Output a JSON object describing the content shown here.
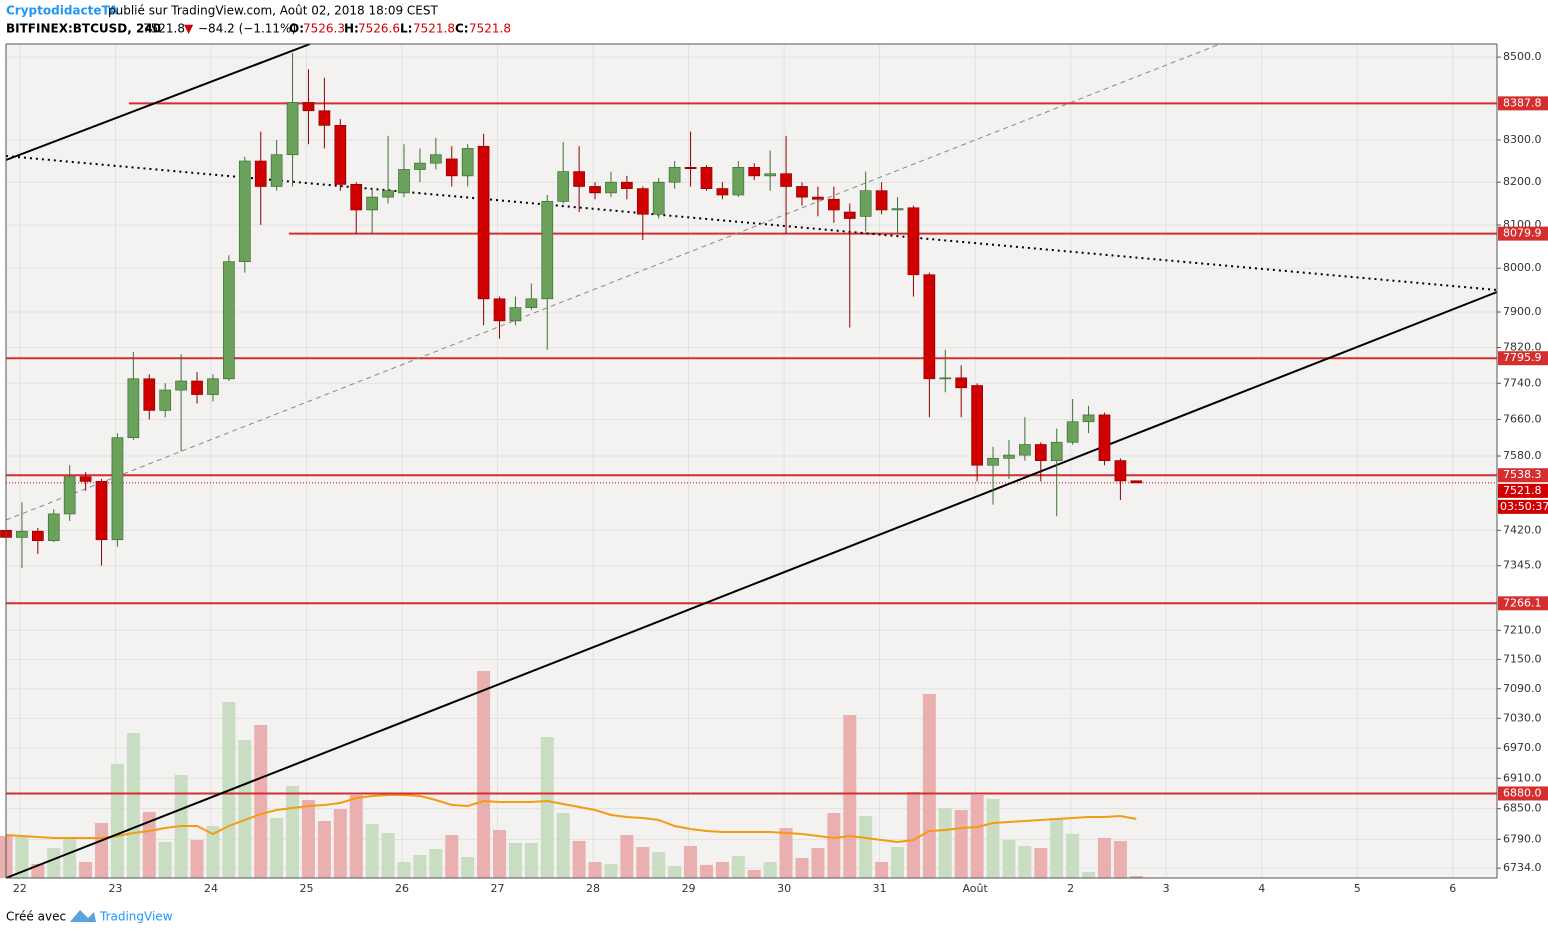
{
  "header": {
    "author": "CryptodidacteTA",
    "published": "publié sur TradingView.com, Août 02, 2018 18:09 CEST",
    "symbol": "BITFINEX:BTCUSD, 240",
    "last": "7521.8",
    "arrow": "▼",
    "change": "−84.2 (−1.11%)",
    "o_label": "O:",
    "o": "7526.3",
    "h_label": "H:",
    "h": "7526.6",
    "l_label": "L:",
    "l": "7521.8",
    "c_label": "C:",
    "c": "7521.8"
  },
  "footer": {
    "made_with": "Créé avec",
    "brand": "TradingView"
  },
  "chart_data": {
    "type": "candlestick",
    "log_scale": true,
    "grid": true,
    "ylim": [
      6715,
      8532
    ],
    "yticks": [
      {
        "value": 8500,
        "label": "8500.0"
      },
      {
        "value": 8300,
        "label": "8300.0"
      },
      {
        "value": 8200,
        "label": "8200.0"
      },
      {
        "value": 8100,
        "label": "8100.0"
      },
      {
        "value": 8000,
        "label": "8000.0"
      },
      {
        "value": 7900,
        "label": "7900.0"
      },
      {
        "value": 7820,
        "label": "7820.0"
      },
      {
        "value": 7740,
        "label": "7740.0"
      },
      {
        "value": 7660,
        "label": "7660.0"
      },
      {
        "value": 7580,
        "label": "7580.0"
      },
      {
        "value": 7420,
        "label": "7420.0"
      },
      {
        "value": 7345,
        "label": "7345.0"
      },
      {
        "value": 7210,
        "label": "7210.0"
      },
      {
        "value": 7150,
        "label": "7150.0"
      },
      {
        "value": 7090,
        "label": "7090.0"
      },
      {
        "value": 7030,
        "label": "7030.0"
      },
      {
        "value": 6970,
        "label": "6970.0"
      },
      {
        "value": 6910,
        "label": "6910.0"
      },
      {
        "value": 6850,
        "label": "6850.0"
      },
      {
        "value": 6790,
        "label": "6790.0"
      },
      {
        "value": 6734,
        "label": "6734.0"
      }
    ],
    "x_labels": [
      "22",
      "23",
      "24",
      "25",
      "26",
      "27",
      "28",
      "29",
      "30",
      "31",
      "Août",
      "2",
      "3",
      "4",
      "5",
      "6"
    ],
    "up_color": "#6ba25b",
    "down_color": "#d10000",
    "open": [
      7420,
      7405,
      7418,
      7398,
      7455,
      7535,
      7525,
      7400,
      7620,
      7750,
      7680,
      7725,
      7745,
      7715,
      7750,
      8015,
      8250,
      8190,
      8265,
      8390,
      8370,
      8335,
      8195,
      8135,
      8165,
      8175,
      8230,
      8245,
      8255,
      8215,
      8285,
      7930,
      7880,
      7910,
      7930,
      8155,
      8225,
      8190,
      8175,
      8200,
      8185,
      8125,
      8200,
      8235,
      8235,
      8185,
      8170,
      8235,
      8215,
      8220,
      8190,
      8165,
      8160,
      8130,
      8120,
      8180,
      8135,
      8140,
      7985,
      7750,
      7752,
      7735,
      7560,
      7575,
      7582,
      7605,
      7570,
      7610,
      7655,
      7670,
      7570,
      7526.3
    ],
    "high": [
      7425,
      7480,
      7425,
      7465,
      7560,
      7545,
      7530,
      7630,
      7810,
      7760,
      7740,
      7805,
      7765,
      7760,
      8030,
      8260,
      8320,
      8300,
      8510,
      8470,
      8450,
      8350,
      8200,
      8185,
      8310,
      8290,
      8280,
      8305,
      8285,
      8290,
      8315,
      7935,
      7935,
      7965,
      8170,
      8295,
      8285,
      8200,
      8225,
      8215,
      8190,
      8210,
      8250,
      8320,
      8240,
      8200,
      8250,
      8245,
      8275,
      8310,
      8200,
      8190,
      8190,
      8150,
      8225,
      8200,
      8165,
      8145,
      7990,
      7815,
      7780,
      7740,
      7600,
      7615,
      7665,
      7610,
      7640,
      7705,
      7690,
      7675,
      7575,
      7526.6
    ],
    "low": [
      7400,
      7340,
      7370,
      7395,
      7440,
      7505,
      7345,
      7385,
      7615,
      7660,
      7665,
      7590,
      7695,
      7700,
      7745,
      7990,
      8100,
      8180,
      8190,
      8290,
      8280,
      8180,
      8080,
      8080,
      8150,
      8165,
      8200,
      8230,
      8190,
      8190,
      7870,
      7840,
      7870,
      7905,
      7815,
      8150,
      8130,
      8160,
      8165,
      8160,
      8065,
      8115,
      8185,
      8190,
      8180,
      8160,
      8165,
      8205,
      8180,
      8080,
      8145,
      8120,
      8105,
      7865,
      8085,
      8125,
      8080,
      7935,
      7665,
      7720,
      7665,
      7525,
      7475,
      7530,
      7570,
      7525,
      7450,
      7605,
      7630,
      7560,
      7485,
      7521.8
    ],
    "close": [
      7405,
      7418,
      7398,
      7455,
      7535,
      7525,
      7400,
      7620,
      7750,
      7680,
      7725,
      7745,
      7715,
      7750,
      8015,
      8250,
      8190,
      8265,
      8390,
      8370,
      8335,
      8195,
      8135,
      8165,
      8180,
      8230,
      8245,
      8265,
      8215,
      8280,
      7930,
      7880,
      7910,
      7930,
      8155,
      8225,
      8190,
      8175,
      8200,
      8185,
      8125,
      8200,
      8235,
      8232,
      8185,
      8170,
      8235,
      8215,
      8220,
      8190,
      8165,
      8160,
      8135,
      8115,
      8180,
      8135,
      8138,
      7985,
      7750,
      7752,
      7730,
      7560,
      7575,
      7582,
      7605,
      7570,
      7610,
      7655,
      7670,
      7570,
      7526,
      7521.8
    ],
    "volume": {
      "up_color": "#c9ddc3",
      "down_color": "#eab0b0",
      "values": [
        42,
        42,
        14,
        30,
        40,
        16,
        55,
        114,
        145,
        66,
        36,
        103,
        38,
        52,
        176,
        138,
        153,
        60,
        92,
        78,
        57,
        69,
        83,
        54,
        45,
        16,
        23,
        29,
        43,
        21,
        207,
        48,
        35,
        35,
        141,
        65,
        37,
        16,
        14,
        43,
        31,
        26,
        12,
        32,
        13,
        16,
        22,
        8,
        16,
        50,
        20,
        30,
        65,
        163,
        62,
        16,
        31,
        86,
        184,
        70,
        68,
        83,
        79,
        38,
        32,
        30,
        60,
        44,
        6,
        40,
        37,
        2
      ]
    },
    "volume_ma": {
      "color": "#f39c12",
      "values": [
        43,
        42,
        41,
        40,
        40,
        40,
        40,
        42,
        45,
        47,
        50,
        52,
        52,
        44,
        52,
        58,
        64,
        68,
        70,
        72,
        73,
        75,
        80,
        82,
        83,
        83,
        82,
        78,
        73,
        72,
        77,
        76,
        76,
        76,
        77,
        74,
        71,
        68,
        63,
        61,
        60,
        58,
        52,
        49,
        47,
        46,
        46,
        46,
        46,
        45,
        44,
        42,
        40,
        42,
        40,
        38,
        36,
        38,
        47,
        48,
        50,
        51,
        55,
        56,
        57,
        58,
        59,
        60,
        61,
        61,
        62,
        59
      ]
    },
    "level_color": "#d32f2f",
    "levels": [
      8387.8,
      8079.9,
      7795.9,
      7538.3,
      7266.1,
      {
        "value": 6880,
        "label": "6880.0"
      }
    ],
    "last_price": 7521.8,
    "countdown": "03:50:37"
  }
}
